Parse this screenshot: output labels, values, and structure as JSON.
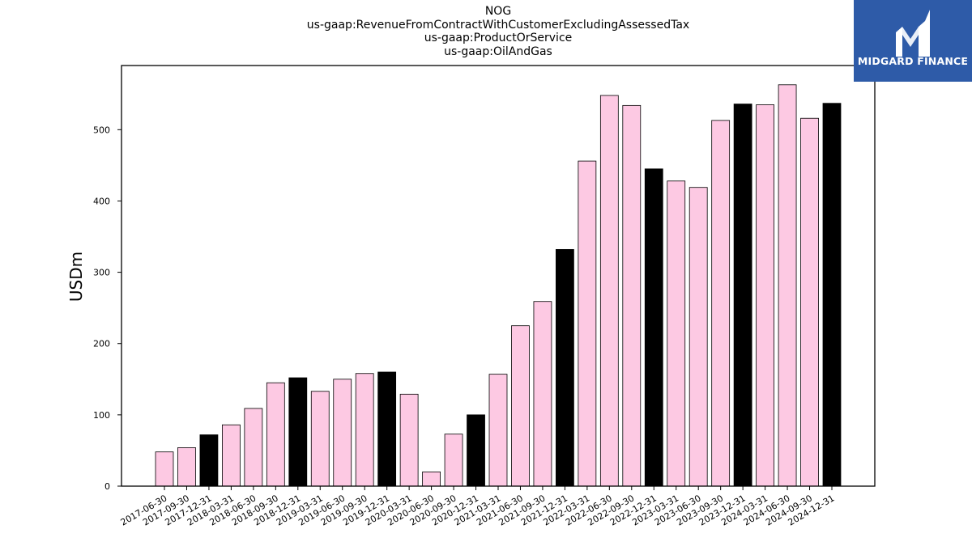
{
  "chart_data": {
    "type": "bar",
    "title_lines": [
      "NOG",
      "us-gaap:RevenueFromContractWithCustomerExcludingAssessedTax",
      "us-gaap:ProductOrService",
      "us-gaap:OilAndGas"
    ],
    "xlabel": "",
    "ylabel": "USDm",
    "ylim": [
      0,
      590
    ],
    "yticks": [
      0,
      100,
      200,
      300,
      400,
      500
    ],
    "categories": [
      "2017-06-30",
      "2017-09-30",
      "2017-12-31",
      "2018-03-31",
      "2018-06-30",
      "2018-09-30",
      "2018-12-31",
      "2019-03-31",
      "2019-06-30",
      "2019-09-30",
      "2019-12-31",
      "2020-03-31",
      "2020-06-30",
      "2020-09-30",
      "2020-12-31",
      "2021-03-31",
      "2021-06-30",
      "2021-09-30",
      "2021-12-31",
      "2022-03-31",
      "2022-06-30",
      "2022-09-30",
      "2022-12-31",
      "2023-03-31",
      "2023-06-30",
      "2023-09-30",
      "2023-12-31",
      "2024-03-31",
      "2024-06-30",
      "2024-09-30",
      "2024-12-31"
    ],
    "values": [
      48,
      54,
      72,
      86,
      109,
      145,
      152,
      133,
      150,
      158,
      160,
      129,
      20,
      73,
      100,
      157,
      225,
      259,
      332,
      456,
      548,
      534,
      445,
      428,
      419,
      513,
      536,
      535,
      563,
      516,
      537
    ],
    "bar_colors": {
      "quarter": "#fdc9e3",
      "year_end": "#000000",
      "edge": "#000000"
    },
    "grid": false
  },
  "logo": {
    "text": "MIDGARD FINANCE"
  }
}
